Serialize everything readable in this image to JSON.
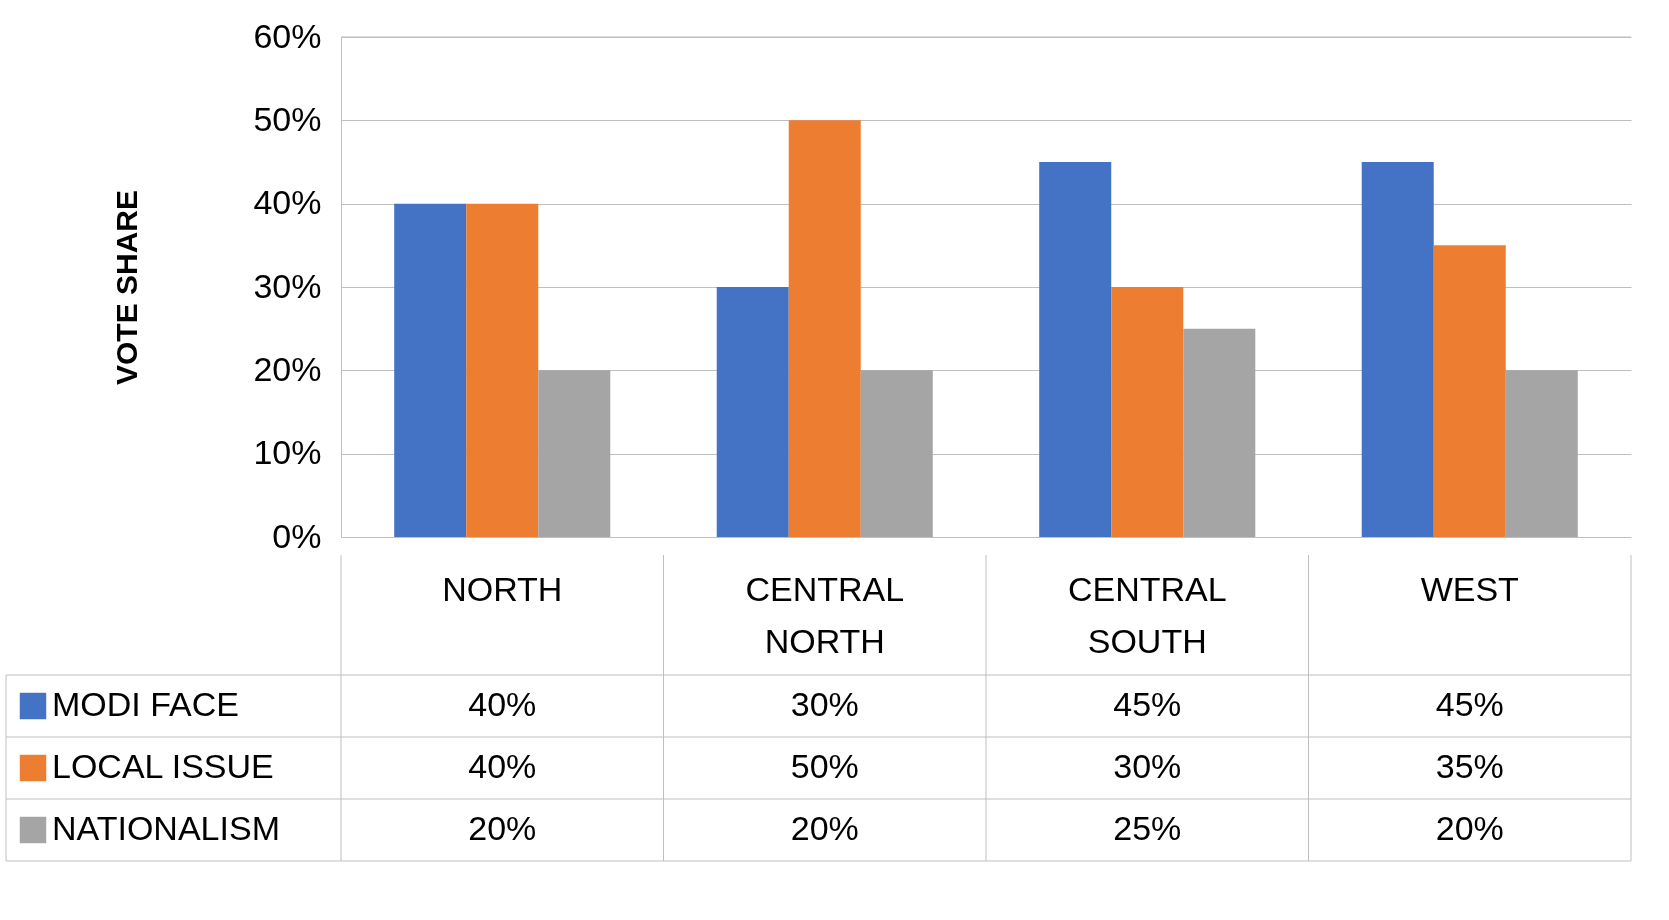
{
  "chart_data": {
    "type": "bar",
    "ylabel": "VOTE SHARE",
    "categories": [
      "NORTH",
      "CENTRAL NORTH",
      "CENTRAL SOUTH",
      "WEST"
    ],
    "series": [
      {
        "name": "MODI FACE",
        "color": "#4472c4",
        "values": [
          40,
          30,
          45,
          45
        ],
        "value_labels": [
          "40%",
          "30%",
          "45%",
          "45%"
        ]
      },
      {
        "name": "LOCAL ISSUE",
        "color": "#ed7d31",
        "values": [
          40,
          50,
          30,
          35
        ],
        "value_labels": [
          "40%",
          "50%",
          "30%",
          "35%"
        ]
      },
      {
        "name": "NATIONALISM",
        "color": "#a5a5a5",
        "values": [
          20,
          20,
          25,
          20
        ],
        "value_labels": [
          "20%",
          "20%",
          "25%",
          "20%"
        ]
      }
    ],
    "ylim": [
      0,
      60
    ],
    "yticks": [
      {
        "value": 0,
        "label": "0%"
      },
      {
        "value": 10,
        "label": "10%"
      },
      {
        "value": 20,
        "label": "20%"
      },
      {
        "value": 30,
        "label": "30%"
      },
      {
        "value": 40,
        "label": "40%"
      },
      {
        "value": 50,
        "label": "50%"
      },
      {
        "value": 60,
        "label": "60%"
      }
    ],
    "grid": "y",
    "legend": "bottom left"
  }
}
